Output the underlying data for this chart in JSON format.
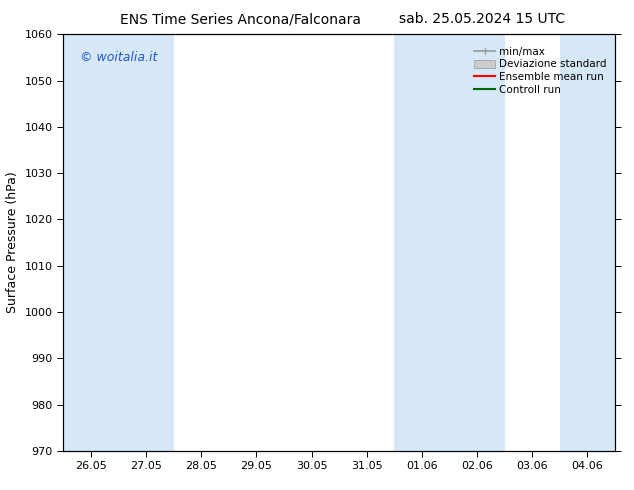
{
  "title_left": "ENS Time Series Ancona/Falconara",
  "title_right": "sab. 25.05.2024 15 UTC",
  "ylabel": "Surface Pressure (hPa)",
  "ylim": [
    970,
    1060
  ],
  "yticks": [
    970,
    980,
    990,
    1000,
    1010,
    1020,
    1030,
    1040,
    1050,
    1060
  ],
  "xtick_labels": [
    "26.05",
    "27.05",
    "28.05",
    "29.05",
    "30.05",
    "31.05",
    "01.06",
    "02.06",
    "03.06",
    "04.06"
  ],
  "band_color": "#d6e8f7",
  "shaded_x_indices": [
    0,
    1,
    6,
    7,
    9
  ],
  "watermark_text": "© woitalia.it",
  "watermark_color": "#2255cc",
  "legend_items": [
    {
      "label": "min/max",
      "color": "#aaaaaa",
      "style": "minmax"
    },
    {
      "label": "Deviazione standard",
      "color": "#cccccc",
      "style": "band"
    },
    {
      "label": "Ensemble mean run",
      "color": "#ff0000",
      "style": "line"
    },
    {
      "label": "Controll run",
      "color": "#006600",
      "style": "line"
    }
  ],
  "background_color": "#ffffff",
  "title_fontsize": 10,
  "axis_label_fontsize": 9,
  "tick_fontsize": 8,
  "legend_fontsize": 7.5,
  "watermark_fontsize": 9
}
